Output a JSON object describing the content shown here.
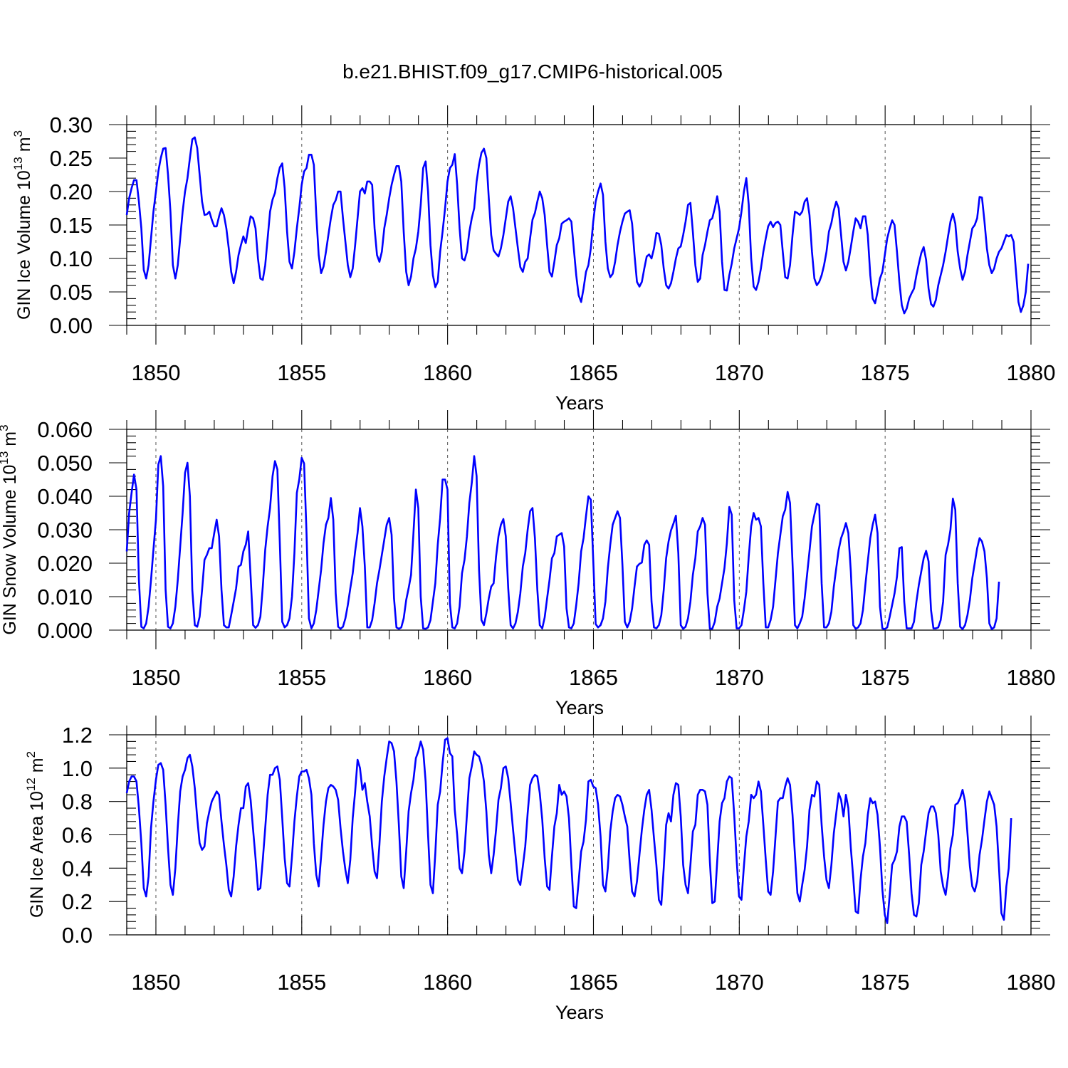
{
  "title": "b.e21.BHIST.f09_g17.CMIP6-historical.005",
  "colors": {
    "series": "#0000ff",
    "axes": "#000000",
    "grid": "#555555"
  },
  "chart_data": [
    {
      "type": "line",
      "xlabel": "Years",
      "ylabel_main": "GIN Ice Volume 10",
      "ylabel_exp": "13",
      "ylabel_unit": " m",
      "ylabel_unit_exp": "3",
      "xlim": [
        1849,
        1880
      ],
      "xticks": [
        1850,
        1855,
        1860,
        1865,
        1870,
        1875,
        1880
      ],
      "ylim": [
        0,
        0.3
      ],
      "yticks": [
        "0.00",
        "0.05",
        "0.10",
        "0.15",
        "0.20",
        "0.25",
        "0.30"
      ],
      "grid": "vertical dashed at labeled years",
      "start": 1849,
      "step": 0.0833,
      "values": [
        0.165,
        0.19,
        0.205,
        0.217,
        0.217,
        0.185,
        0.145,
        0.083,
        0.07,
        0.09,
        0.13,
        0.17,
        0.2,
        0.23,
        0.25,
        0.264,
        0.265,
        0.225,
        0.17,
        0.09,
        0.07,
        0.09,
        0.13,
        0.17,
        0.2,
        0.22,
        0.25,
        0.278,
        0.281,
        0.265,
        0.225,
        0.185,
        0.165,
        0.166,
        0.17,
        0.158,
        0.148,
        0.148,
        0.163,
        0.175,
        0.165,
        0.145,
        0.115,
        0.08,
        0.063,
        0.08,
        0.105,
        0.12,
        0.133,
        0.123,
        0.145,
        0.163,
        0.16,
        0.145,
        0.1,
        0.07,
        0.068,
        0.09,
        0.13,
        0.17,
        0.188,
        0.198,
        0.22,
        0.236,
        0.242,
        0.205,
        0.14,
        0.095,
        0.085,
        0.11,
        0.145,
        0.175,
        0.21,
        0.23,
        0.235,
        0.255,
        0.255,
        0.24,
        0.165,
        0.105,
        0.078,
        0.088,
        0.11,
        0.135,
        0.16,
        0.18,
        0.187,
        0.2,
        0.2,
        0.16,
        0.125,
        0.09,
        0.072,
        0.085,
        0.12,
        0.16,
        0.2,
        0.205,
        0.197,
        0.215,
        0.215,
        0.21,
        0.145,
        0.105,
        0.095,
        0.11,
        0.145,
        0.165,
        0.19,
        0.21,
        0.225,
        0.238,
        0.238,
        0.215,
        0.14,
        0.08,
        0.06,
        0.073,
        0.1,
        0.115,
        0.14,
        0.18,
        0.235,
        0.245,
        0.2,
        0.12,
        0.075,
        0.057,
        0.065,
        0.11,
        0.14,
        0.175,
        0.215,
        0.235,
        0.24,
        0.256,
        0.21,
        0.145,
        0.1,
        0.097,
        0.11,
        0.14,
        0.16,
        0.175,
        0.215,
        0.24,
        0.258,
        0.264,
        0.25,
        0.19,
        0.135,
        0.112,
        0.107,
        0.103,
        0.115,
        0.135,
        0.16,
        0.185,
        0.193,
        0.175,
        0.145,
        0.115,
        0.087,
        0.08,
        0.095,
        0.1,
        0.13,
        0.158,
        0.168,
        0.185,
        0.2,
        0.19,
        0.165,
        0.12,
        0.08,
        0.073,
        0.095,
        0.12,
        0.13,
        0.152,
        0.155,
        0.157,
        0.16,
        0.155,
        0.115,
        0.075,
        0.045,
        0.035,
        0.055,
        0.08,
        0.09,
        0.115,
        0.155,
        0.185,
        0.2,
        0.212,
        0.195,
        0.125,
        0.085,
        0.072,
        0.077,
        0.095,
        0.12,
        0.14,
        0.155,
        0.167,
        0.17,
        0.172,
        0.152,
        0.105,
        0.065,
        0.058,
        0.065,
        0.085,
        0.103,
        0.106,
        0.1,
        0.115,
        0.138,
        0.137,
        0.12,
        0.085,
        0.06,
        0.055,
        0.063,
        0.08,
        0.1,
        0.115,
        0.118,
        0.135,
        0.155,
        0.18,
        0.183,
        0.14,
        0.09,
        0.065,
        0.07,
        0.105,
        0.12,
        0.14,
        0.157,
        0.16,
        0.175,
        0.193,
        0.17,
        0.095,
        0.053,
        0.052,
        0.075,
        0.092,
        0.115,
        0.13,
        0.145,
        0.17,
        0.2,
        0.22,
        0.18,
        0.1,
        0.058,
        0.053,
        0.065,
        0.085,
        0.11,
        0.13,
        0.148,
        0.155,
        0.147,
        0.153,
        0.155,
        0.15,
        0.11,
        0.072,
        0.07,
        0.09,
        0.135,
        0.17,
        0.168,
        0.165,
        0.17,
        0.185,
        0.19,
        0.165,
        0.11,
        0.07,
        0.06,
        0.065,
        0.075,
        0.09,
        0.11,
        0.14,
        0.153,
        0.172,
        0.185,
        0.175,
        0.135,
        0.095,
        0.082,
        0.095,
        0.117,
        0.14,
        0.16,
        0.155,
        0.145,
        0.163,
        0.163,
        0.135,
        0.075,
        0.04,
        0.033,
        0.05,
        0.07,
        0.08,
        0.105,
        0.13,
        0.145,
        0.157,
        0.15,
        0.11,
        0.065,
        0.03,
        0.018,
        0.025,
        0.04,
        0.048,
        0.055,
        0.075,
        0.092,
        0.108,
        0.117,
        0.098,
        0.055,
        0.032,
        0.028,
        0.038,
        0.06,
        0.075,
        0.09,
        0.11,
        0.133,
        0.155,
        0.167,
        0.152,
        0.11,
        0.085,
        0.068,
        0.08,
        0.105,
        0.125,
        0.145,
        0.15,
        0.16,
        0.192,
        0.191,
        0.155,
        0.115,
        0.09,
        0.078,
        0.085,
        0.1,
        0.11,
        0.115,
        0.125,
        0.135,
        0.133,
        0.135,
        0.125,
        0.08,
        0.035,
        0.02,
        0.03,
        0.05,
        0.092
      ]
    },
    {
      "type": "line",
      "xlabel": "Years",
      "ylabel_main": "GIN Snow Volume 10",
      "ylabel_exp": "13",
      "ylabel_unit": " m",
      "ylabel_unit_exp": "3",
      "xlim": [
        1849,
        1880
      ],
      "xticks": [
        1850,
        1855,
        1860,
        1865,
        1870,
        1875,
        1880
      ],
      "ylim": [
        0,
        0.06
      ],
      "yticks": [
        "0.000",
        "0.010",
        "0.020",
        "0.030",
        "0.040",
        "0.050",
        "0.060"
      ],
      "grid": "vertical dashed at labeled years",
      "start": 1849,
      "step": 0.0833,
      "values": [
        0.0235,
        0.035,
        0.041,
        0.0465,
        0.042,
        0.015,
        0.001,
        0.0005,
        0.002,
        0.007,
        0.015,
        0.024,
        0.033,
        0.0495,
        0.052,
        0.043,
        0.012,
        0.001,
        0.0005,
        0.002,
        0.007,
        0.015,
        0.025,
        0.035,
        0.047,
        0.05,
        0.04,
        0.012,
        0.0015,
        0.001,
        0.004,
        0.012,
        0.021,
        0.0225,
        0.0245,
        0.0245,
        0.029,
        0.033,
        0.028,
        0.012,
        0.0015,
        0.0008,
        0.0008,
        0.0045,
        0.0085,
        0.0125,
        0.019,
        0.0195,
        0.0235,
        0.0255,
        0.0295,
        0.016,
        0.0015,
        0.0007,
        0.0015,
        0.004,
        0.013,
        0.024,
        0.031,
        0.0365,
        0.046,
        0.0505,
        0.048,
        0.026,
        0.0025,
        0.0008,
        0.0015,
        0.0035,
        0.01,
        0.023,
        0.041,
        0.045,
        0.0515,
        0.0498,
        0.029,
        0.0035,
        0.0005,
        0.002,
        0.006,
        0.012,
        0.018,
        0.026,
        0.0315,
        0.0335,
        0.0395,
        0.033,
        0.011,
        0.001,
        0.0004,
        0.001,
        0.0035,
        0.0075,
        0.0125,
        0.017,
        0.0235,
        0.029,
        0.0365,
        0.031,
        0.019,
        0.0008,
        0.0008,
        0.003,
        0.008,
        0.014,
        0.018,
        0.0225,
        0.027,
        0.0315,
        0.0335,
        0.0285,
        0.0095,
        0.0008,
        0.0004,
        0.0008,
        0.0035,
        0.009,
        0.0125,
        0.0165,
        0.029,
        0.042,
        0.0365,
        0.01,
        0.0005,
        0.0004,
        0.0008,
        0.003,
        0.0085,
        0.014,
        0.0255,
        0.0335,
        0.045,
        0.045,
        0.042,
        0.008,
        0.0008,
        0.0005,
        0.002,
        0.007,
        0.017,
        0.021,
        0.028,
        0.038,
        0.044,
        0.052,
        0.046,
        0.018,
        0.003,
        0.0015,
        0.005,
        0.0095,
        0.013,
        0.014,
        0.022,
        0.028,
        0.0315,
        0.0332,
        0.028,
        0.0125,
        0.0015,
        0.0005,
        0.002,
        0.0055,
        0.011,
        0.019,
        0.023,
        0.03,
        0.0355,
        0.0365,
        0.0275,
        0.012,
        0.0015,
        0.0005,
        0.0038,
        0.0095,
        0.015,
        0.0215,
        0.023,
        0.028,
        0.0285,
        0.029,
        0.025,
        0.0065,
        0.0008,
        0.0005,
        0.002,
        0.0075,
        0.014,
        0.0235,
        0.0275,
        0.034,
        0.04,
        0.039,
        0.021,
        0.0018,
        0.0008,
        0.0015,
        0.0035,
        0.0085,
        0.0185,
        0.0255,
        0.0315,
        0.0335,
        0.0355,
        0.0335,
        0.0195,
        0.0025,
        0.0008,
        0.0025,
        0.0065,
        0.013,
        0.019,
        0.0198,
        0.0202,
        0.0255,
        0.0268,
        0.0255,
        0.0085,
        0.0008,
        0.0005,
        0.0015,
        0.0045,
        0.012,
        0.0215,
        0.0265,
        0.0298,
        0.0318,
        0.0342,
        0.023,
        0.0015,
        0.0004,
        0.001,
        0.0035,
        0.0085,
        0.0165,
        0.0215,
        0.0295,
        0.031,
        0.0335,
        0.0315,
        0.011,
        0.0004,
        0.0004,
        0.0025,
        0.007,
        0.0095,
        0.014,
        0.0185,
        0.026,
        0.0368,
        0.0345,
        0.009,
        0.0005,
        0.0005,
        0.0015,
        0.006,
        0.0115,
        0.022,
        0.031,
        0.035,
        0.033,
        0.0335,
        0.031,
        0.014,
        0.0008,
        0.0008,
        0.003,
        0.007,
        0.015,
        0.023,
        0.0285,
        0.034,
        0.036,
        0.0413,
        0.038,
        0.02,
        0.0015,
        0.0005,
        0.002,
        0.004,
        0.0095,
        0.0165,
        0.0235,
        0.031,
        0.0345,
        0.0378,
        0.0373,
        0.014,
        0.0008,
        0.0008,
        0.002,
        0.0055,
        0.013,
        0.0185,
        0.024,
        0.0275,
        0.0295,
        0.032,
        0.029,
        0.0175,
        0.0015,
        0.0004,
        0.0008,
        0.002,
        0.006,
        0.0135,
        0.0205,
        0.0275,
        0.0315,
        0.0345,
        0.029,
        0.007,
        0.0005,
        0.0003,
        0.0008,
        0.004,
        0.0075,
        0.011,
        0.016,
        0.0245,
        0.0248,
        0.0085,
        0.0005,
        0.0005,
        0.0005,
        0.0025,
        0.0085,
        0.0135,
        0.0175,
        0.0215,
        0.0237,
        0.0205,
        0.006,
        0.0005,
        0.0005,
        0.0008,
        0.003,
        0.0085,
        0.0225,
        0.0255,
        0.03,
        0.0393,
        0.036,
        0.014,
        0.001,
        0.0003,
        0.0015,
        0.0045,
        0.009,
        0.0155,
        0.02,
        0.0245,
        0.0275,
        0.0265,
        0.0235,
        0.0155,
        0.002,
        0.0003,
        0.0008,
        0.0035,
        0.0145
      ]
    },
    {
      "type": "line",
      "xlabel": "Years",
      "ylabel_main": "GIN Ice Area 10",
      "ylabel_exp": "12",
      "ylabel_unit": " m",
      "ylabel_unit_exp": "2",
      "xlim": [
        1849,
        1880
      ],
      "xticks": [
        1850,
        1855,
        1860,
        1865,
        1870,
        1875,
        1880
      ],
      "ylim": [
        0,
        1.2
      ],
      "yticks": [
        "0.0",
        "0.2",
        "0.4",
        "0.6",
        "0.8",
        "1.0",
        "1.2"
      ],
      "grid": "vertical dashed at labeled years",
      "start": 1849,
      "step": 0.0833,
      "values": [
        0.85,
        0.92,
        0.95,
        0.95,
        0.92,
        0.76,
        0.55,
        0.28,
        0.23,
        0.35,
        0.64,
        0.8,
        0.93,
        1.02,
        1.03,
        0.99,
        0.78,
        0.52,
        0.3,
        0.24,
        0.4,
        0.65,
        0.86,
        0.95,
        0.99,
        1.06,
        1.08,
        1.01,
        0.88,
        0.7,
        0.55,
        0.51,
        0.53,
        0.67,
        0.74,
        0.8,
        0.83,
        0.86,
        0.84,
        0.68,
        0.54,
        0.42,
        0.27,
        0.23,
        0.35,
        0.53,
        0.66,
        0.76,
        0.76,
        0.89,
        0.91,
        0.81,
        0.63,
        0.46,
        0.27,
        0.28,
        0.45,
        0.64,
        0.84,
        0.96,
        0.96,
        1.0,
        1.01,
        0.93,
        0.7,
        0.46,
        0.31,
        0.29,
        0.47,
        0.68,
        0.83,
        0.95,
        0.98,
        0.98,
        0.99,
        0.94,
        0.84,
        0.55,
        0.36,
        0.29,
        0.47,
        0.66,
        0.8,
        0.88,
        0.9,
        0.89,
        0.87,
        0.81,
        0.64,
        0.5,
        0.39,
        0.31,
        0.45,
        0.7,
        0.86,
        1.05,
        1.0,
        0.87,
        0.91,
        0.8,
        0.71,
        0.53,
        0.38,
        0.34,
        0.54,
        0.8,
        0.95,
        1.06,
        1.16,
        1.15,
        1.1,
        0.92,
        0.66,
        0.35,
        0.28,
        0.5,
        0.74,
        0.85,
        0.93,
        1.06,
        1.1,
        1.16,
        1.11,
        0.92,
        0.6,
        0.3,
        0.25,
        0.49,
        0.78,
        0.86,
        1.03,
        1.17,
        1.18,
        1.09,
        1.07,
        0.75,
        0.6,
        0.4,
        0.37,
        0.5,
        0.72,
        0.94,
        1.01,
        1.1,
        1.08,
        1.07,
        1.02,
        0.92,
        0.74,
        0.48,
        0.37,
        0.48,
        0.63,
        0.81,
        0.88,
        1.0,
        1.01,
        0.94,
        0.79,
        0.63,
        0.48,
        0.33,
        0.3,
        0.41,
        0.53,
        0.73,
        0.9,
        0.94,
        0.96,
        0.95,
        0.85,
        0.69,
        0.46,
        0.29,
        0.27,
        0.47,
        0.65,
        0.73,
        0.9,
        0.84,
        0.86,
        0.83,
        0.7,
        0.42,
        0.17,
        0.16,
        0.32,
        0.5,
        0.56,
        0.69,
        0.92,
        0.93,
        0.89,
        0.88,
        0.78,
        0.59,
        0.3,
        0.26,
        0.4,
        0.62,
        0.74,
        0.82,
        0.84,
        0.83,
        0.78,
        0.71,
        0.65,
        0.44,
        0.26,
        0.23,
        0.32,
        0.48,
        0.63,
        0.75,
        0.84,
        0.87,
        0.75,
        0.58,
        0.42,
        0.21,
        0.18,
        0.4,
        0.66,
        0.73,
        0.68,
        0.84,
        0.91,
        0.9,
        0.71,
        0.42,
        0.3,
        0.25,
        0.42,
        0.62,
        0.66,
        0.84,
        0.87,
        0.87,
        0.86,
        0.78,
        0.44,
        0.19,
        0.2,
        0.44,
        0.68,
        0.79,
        0.82,
        0.92,
        0.95,
        0.94,
        0.72,
        0.45,
        0.23,
        0.21,
        0.41,
        0.59,
        0.68,
        0.84,
        0.82,
        0.84,
        0.92,
        0.86,
        0.66,
        0.45,
        0.26,
        0.24,
        0.38,
        0.59,
        0.8,
        0.82,
        0.82,
        0.89,
        0.94,
        0.9,
        0.72,
        0.48,
        0.25,
        0.2,
        0.3,
        0.39,
        0.53,
        0.75,
        0.84,
        0.83,
        0.92,
        0.9,
        0.66,
        0.47,
        0.33,
        0.28,
        0.42,
        0.61,
        0.73,
        0.85,
        0.81,
        0.71,
        0.84,
        0.76,
        0.52,
        0.34,
        0.14,
        0.13,
        0.33,
        0.47,
        0.55,
        0.72,
        0.82,
        0.79,
        0.8,
        0.72,
        0.53,
        0.27,
        0.12,
        0.07,
        0.24,
        0.42,
        0.45,
        0.5,
        0.65,
        0.71,
        0.71,
        0.68,
        0.48,
        0.25,
        0.12,
        0.11,
        0.19,
        0.42,
        0.5,
        0.62,
        0.73,
        0.77,
        0.77,
        0.73,
        0.6,
        0.38,
        0.29,
        0.24,
        0.35,
        0.52,
        0.6,
        0.78,
        0.79,
        0.82,
        0.87,
        0.8,
        0.61,
        0.41,
        0.29,
        0.26,
        0.32,
        0.48,
        0.57,
        0.69,
        0.8,
        0.86,
        0.82,
        0.78,
        0.65,
        0.4,
        0.13,
        0.09,
        0.29,
        0.4,
        0.7
      ]
    }
  ]
}
